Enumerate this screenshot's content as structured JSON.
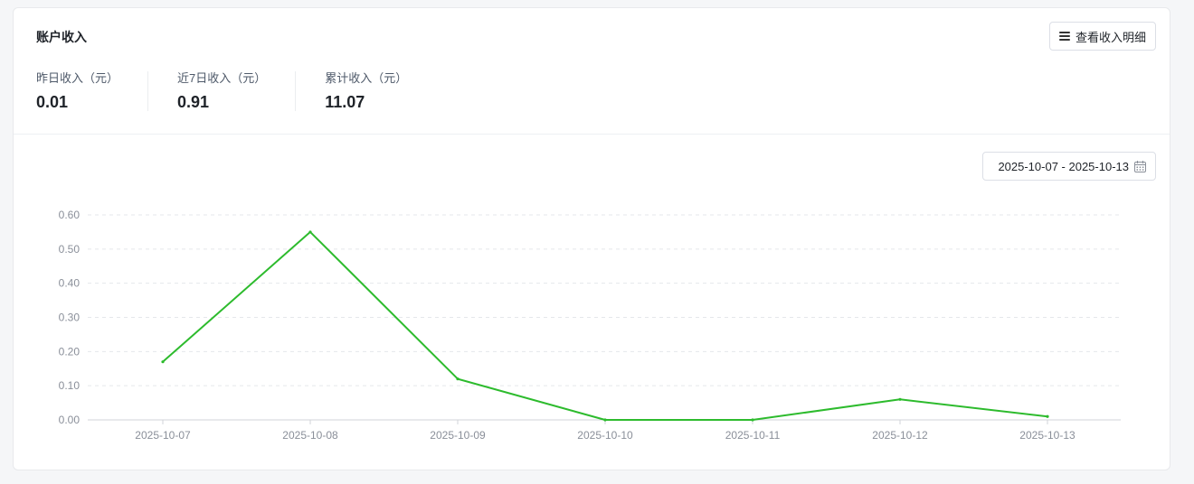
{
  "card": {
    "title": "账户收入",
    "detail_button_label": "查看收入明细",
    "detail_button_icon": "list-icon"
  },
  "stats": [
    {
      "label": "昨日收入（元）",
      "value": "0.01"
    },
    {
      "label": "近7日收入（元）",
      "value": "0.91"
    },
    {
      "label": "累计收入（元）",
      "value": "11.07"
    }
  ],
  "date_range": {
    "value": "2025-10-07 - 2025-10-13",
    "icon": "calendar-icon"
  },
  "chart_data": {
    "type": "line",
    "categories": [
      "2025-10-07",
      "2025-10-08",
      "2025-10-09",
      "2025-10-10",
      "2025-10-11",
      "2025-10-12",
      "2025-10-13"
    ],
    "series": [
      {
        "values": [
          0.17,
          0.55,
          0.12,
          0.0,
          0.0,
          0.06,
          0.01
        ],
        "color": "#2dbb2d"
      }
    ],
    "y_ticks": [
      "0.00",
      "0.10",
      "0.20",
      "0.30",
      "0.40",
      "0.50",
      "0.60"
    ],
    "ylim": [
      0,
      0.6
    ],
    "grid": true,
    "grid_style": "dashed",
    "legend": "none"
  }
}
